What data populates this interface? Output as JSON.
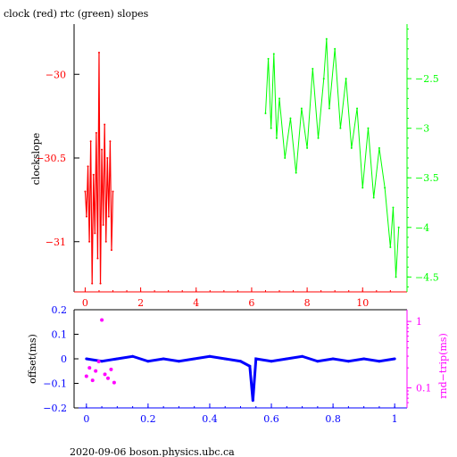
{
  "title": "clock (red) rtc (green) slopes",
  "footer": "2020-09-06  boson.physics.ubc.ca",
  "colors": {
    "red": "#ff0000",
    "green": "#00ff00",
    "blue": "#0000ff",
    "magenta": "#ff00ff",
    "axis": "#000000"
  },
  "chart_data": [
    {
      "type": "line",
      "title": "clock (red) rtc (green) slopes",
      "ylabel": "clockslope",
      "xlim": [
        -0.4,
        11.6
      ],
      "xticks": [
        0,
        2,
        4,
        6,
        8,
        10
      ],
      "xtick_labels": [
        "0",
        "2",
        "4",
        "6",
        "8",
        "10"
      ],
      "ylim": [
        -31.3,
        -29.7
      ],
      "yticks": [
        -30,
        -30.5,
        -31
      ],
      "ytick_labels": [
        "−30",
        "−30.5",
        "−31"
      ],
      "y2lim": [
        -4.65,
        -1.95
      ],
      "y2ticks": [
        -2.5,
        -3,
        -3.5,
        -4,
        -4.5
      ],
      "y2tick_labels": [
        "−2.5",
        "−3",
        "−3.5",
        "−4",
        "−4.5"
      ],
      "series": [
        {
          "name": "clock",
          "axis": "left",
          "x": [
            0.0,
            0.05,
            0.1,
            0.15,
            0.2,
            0.25,
            0.3,
            0.35,
            0.4,
            0.45,
            0.5,
            0.55,
            0.6,
            0.65,
            0.7,
            0.75,
            0.8,
            0.85,
            0.9,
            0.95,
            1.0
          ],
          "y": [
            -30.7,
            -30.85,
            -30.55,
            -31.0,
            -30.4,
            -31.25,
            -30.6,
            -30.95,
            -30.35,
            -31.1,
            -29.87,
            -31.25,
            -30.45,
            -30.9,
            -30.3,
            -31.0,
            -30.5,
            -30.85,
            -30.4,
            -31.05,
            -30.7
          ]
        },
        {
          "name": "rtc",
          "axis": "right",
          "x": [
            6.5,
            6.6,
            6.7,
            6.8,
            6.9,
            7.0,
            7.2,
            7.4,
            7.6,
            7.8,
            8.0,
            8.2,
            8.4,
            8.6,
            8.7,
            8.8,
            9.0,
            9.2,
            9.4,
            9.6,
            9.8,
            10.0,
            10.2,
            10.4,
            10.6,
            10.8,
            11.0,
            11.1,
            11.2,
            11.3
          ],
          "y": [
            -2.85,
            -2.3,
            -3.0,
            -2.25,
            -3.1,
            -2.7,
            -3.3,
            -2.9,
            -3.45,
            -2.8,
            -3.2,
            -2.4,
            -3.1,
            -2.5,
            -2.1,
            -2.8,
            -2.2,
            -3.0,
            -2.5,
            -3.2,
            -2.8,
            -3.6,
            -3.0,
            -3.7,
            -3.2,
            -3.6,
            -4.2,
            -3.8,
            -4.5,
            -4.0
          ]
        }
      ]
    },
    {
      "type": "scatter",
      "ylabel": "offset(ms)",
      "y2label": "rnd−trip(ms)",
      "xlim": [
        -0.04,
        1.04
      ],
      "xticks": [
        0,
        0.2,
        0.4,
        0.6,
        0.8,
        1
      ],
      "xtick_labels": [
        "0",
        "0.2",
        "0.4",
        "0.6",
        "0.8",
        "1"
      ],
      "ylim": [
        -0.2,
        0.2
      ],
      "yticks": [
        -0.2,
        -0.1,
        0,
        0.1,
        0.2
      ],
      "ytick_labels": [
        "−0.2",
        "−0.1",
        "0",
        "0.1",
        "0.2"
      ],
      "y2scale": "log",
      "y2lim": [
        0.05,
        1.5
      ],
      "y2ticks": [
        0.1,
        1
      ],
      "y2tick_labels": [
        "0.1",
        "1"
      ],
      "series": [
        {
          "name": "offset",
          "axis": "left",
          "x": [
            0.0,
            0.05,
            0.1,
            0.15,
            0.2,
            0.25,
            0.3,
            0.35,
            0.4,
            0.45,
            0.5,
            0.53,
            0.54,
            0.55,
            0.6,
            0.65,
            0.7,
            0.75,
            0.8,
            0.85,
            0.9,
            0.95,
            1.0
          ],
          "y": [
            0.0,
            -0.01,
            0.0,
            0.01,
            -0.01,
            0.0,
            -0.01,
            0.0,
            0.01,
            0.0,
            -0.01,
            -0.03,
            -0.17,
            0.0,
            -0.01,
            0.0,
            0.01,
            -0.01,
            0.0,
            -0.01,
            0.0,
            -0.01,
            0.0
          ]
        },
        {
          "name": "rnd-trip",
          "axis": "right",
          "x": [
            0.0,
            0.01,
            0.02,
            0.03,
            0.04,
            0.05,
            0.06,
            0.07,
            0.08,
            0.09
          ],
          "y": [
            0.15,
            0.2,
            0.13,
            0.18,
            0.25,
            1.05,
            0.16,
            0.14,
            0.19,
            0.12
          ]
        }
      ]
    }
  ]
}
